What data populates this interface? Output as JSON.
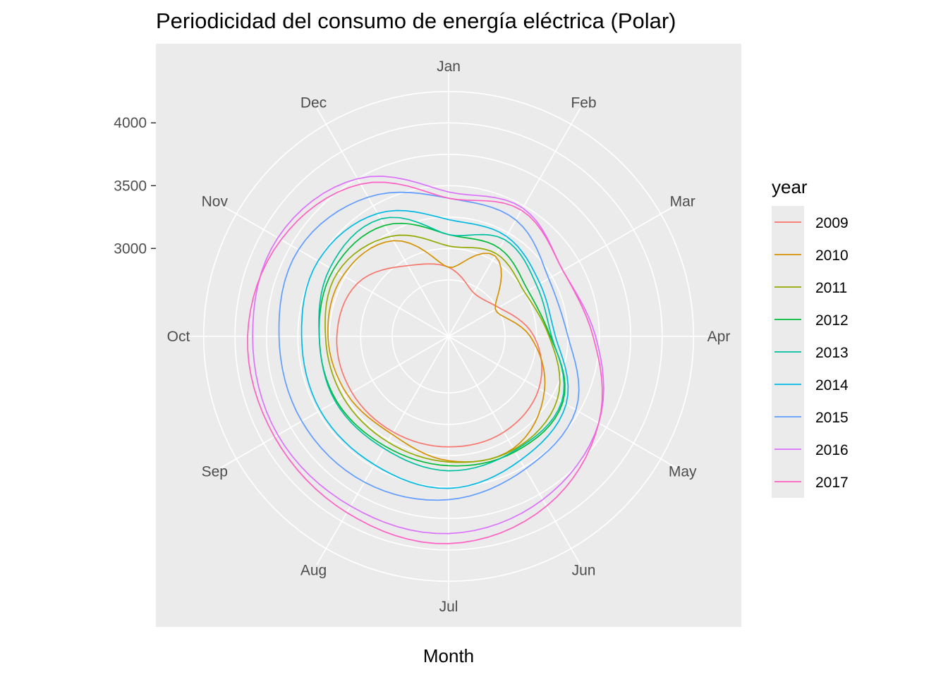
{
  "chart_data": {
    "type": "line",
    "coord": "polar",
    "title": "Periodicidad del consumo de energía eléctrica (Polar)",
    "xlabel": "Month",
    "ylabel": "",
    "months": [
      "Jan",
      "Feb",
      "Mar",
      "Apr",
      "May",
      "Jun",
      "Jul",
      "Aug",
      "Sep",
      "Oct",
      "Nov",
      "Dec"
    ],
    "ylim": [
      2300,
      4400
    ],
    "yticks": [
      3000,
      3500,
      4000
    ],
    "grid_rings": [
      2750,
      3000,
      3250,
      3500,
      3750,
      4000,
      4250
    ],
    "grid": true,
    "legend": {
      "title": "year",
      "position": "right"
    },
    "series": [
      {
        "name": "2009",
        "color": "#F8766D",
        "values": [
          2850,
          2700,
          2760,
          2980,
          3130,
          3180,
          3180,
          3180,
          3190,
          3190,
          3140,
          2950
        ]
      },
      {
        "name": "2010",
        "color": "#D39200",
        "values": [
          2850,
          3040,
          2730,
          2950,
          3180,
          3330,
          3290,
          3200,
          3230,
          3260,
          3270,
          3180
        ]
      },
      {
        "name": "2011",
        "color": "#93AA00",
        "values": [
          3020,
          3060,
          3000,
          3100,
          3300,
          3340,
          3300,
          3270,
          3270,
          3280,
          3320,
          3220
        ]
      },
      {
        "name": "2012",
        "color": "#00BA38",
        "values": [
          3110,
          3110,
          3030,
          3110,
          3350,
          3360,
          3330,
          3310,
          3330,
          3330,
          3360,
          3320
        ]
      },
      {
        "name": "2013",
        "color": "#00C19F",
        "values": [
          3110,
          3190,
          3110,
          3120,
          3340,
          3350,
          3370,
          3330,
          3340,
          3330,
          3390,
          3380
        ]
      },
      {
        "name": "2014",
        "color": "#00B9E3",
        "values": [
          3230,
          3220,
          3140,
          3150,
          3380,
          3440,
          3510,
          3480,
          3480,
          3470,
          3500,
          3430
        ]
      },
      {
        "name": "2015",
        "color": "#619CFF",
        "values": [
          3400,
          3370,
          3220,
          3250,
          3470,
          3520,
          3600,
          3640,
          3650,
          3650,
          3680,
          3580
        ]
      },
      {
        "name": "2016",
        "color": "#DB72FB",
        "values": [
          3450,
          3480,
          3350,
          3470,
          3680,
          3800,
          3870,
          3860,
          3870,
          3860,
          3870,
          3750
        ]
      },
      {
        "name": "2017",
        "color": "#FF61C3",
        "values": [
          3400,
          3460,
          3350,
          3450,
          3680,
          3860,
          3950,
          3920,
          3900,
          3900,
          3840,
          3700
        ]
      }
    ]
  }
}
